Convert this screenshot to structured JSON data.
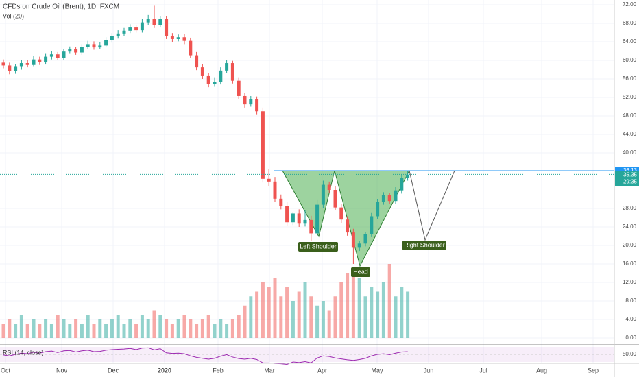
{
  "chart_data": {
    "type": "candlestick",
    "title": "CFDs on Crude Oil (Brent), 1D, FXCM",
    "volume_label": "Vol (20)",
    "rsi_label": "RSI (14, close)",
    "x_labels": [
      "Oct",
      "Nov",
      "Dec",
      "2020",
      "Feb",
      "Mar",
      "Apr",
      "May",
      "Jun",
      "Jul",
      "Aug",
      "Sep"
    ],
    "ylim": [
      -1,
      73
    ],
    "yticks": [
      {
        "value": 0,
        "label": "0.00"
      },
      {
        "value": 4,
        "label": "4.00"
      },
      {
        "value": 8,
        "label": "8.00"
      },
      {
        "value": 12,
        "label": "12.00"
      },
      {
        "value": 16,
        "label": "16.00"
      },
      {
        "value": 20,
        "label": "20.00"
      },
      {
        "value": 24,
        "label": "24.00"
      },
      {
        "value": 28,
        "label": "28.00"
      },
      {
        "value": 40,
        "label": "40.00"
      },
      {
        "value": 44,
        "label": "44.00"
      },
      {
        "value": 48,
        "label": "48.00"
      },
      {
        "value": 52,
        "label": "52.00"
      },
      {
        "value": 56,
        "label": "56.00"
      },
      {
        "value": 60,
        "label": "60.00"
      },
      {
        "value": 64,
        "label": "64.00"
      },
      {
        "value": 68,
        "label": "68.00"
      },
      {
        "value": 72,
        "label": "72.00"
      }
    ],
    "up_color": "#26a69a",
    "down_color": "#ef5350",
    "open": [
      59.5,
      58.9,
      57.7,
      58.6,
      59.4,
      59.0,
      60.2,
      59.6,
      60.8,
      61.3,
      60.5,
      61.9,
      62.4,
      61.7,
      62.9,
      63.5,
      62.8,
      63.2,
      64.3,
      65.2,
      65.8,
      66.4,
      67.1,
      66.5,
      68.2,
      68.9,
      67.6,
      68.9,
      65.2,
      64.6,
      65.0,
      64.2,
      61.1,
      58.5,
      56.6,
      54.9,
      55.4,
      57.8,
      59.4,
      55.6,
      52.3,
      50.5,
      51.6,
      49.0,
      34.4,
      33.8,
      30.1,
      28.5,
      25.0,
      26.9,
      24.7,
      25.5,
      22.6,
      28.8,
      33.1,
      32.0,
      28.2,
      25.6,
      22.8,
      19.5,
      20.4,
      22.5,
      26.3,
      29.4,
      30.9,
      29.6,
      31.9,
      34.6
    ],
    "high": [
      60.2,
      59.5,
      59.2,
      60.0,
      60.1,
      60.9,
      60.8,
      61.4,
      62.0,
      61.8,
      62.5,
      63.0,
      62.9,
      63.5,
      64.2,
      64.1,
      63.9,
      65.0,
      65.9,
      66.5,
      67.0,
      67.8,
      67.6,
      68.9,
      69.8,
      71.8,
      69.6,
      69.5,
      65.9,
      65.6,
      65.7,
      64.9,
      61.8,
      59.2,
      57.3,
      56.2,
      58.5,
      60.0,
      59.9,
      56.2,
      53.0,
      52.3,
      52.2,
      49.8,
      36.5,
      34.8,
      31.0,
      29.4,
      27.2,
      27.8,
      27.6,
      26.4,
      29.8,
      34.0,
      33.8,
      32.8,
      28.9,
      26.3,
      23.6,
      20.9,
      22.9,
      27.0,
      30.0,
      31.5,
      31.4,
      32.6,
      35.4,
      36.0
    ],
    "low": [
      58.3,
      57.0,
      57.1,
      58.0,
      58.5,
      58.6,
      59.0,
      59.1,
      60.2,
      60.0,
      60.0,
      61.4,
      61.2,
      61.2,
      62.5,
      62.3,
      62.4,
      62.8,
      63.8,
      64.7,
      65.3,
      65.9,
      66.0,
      66.0,
      67.7,
      67.0,
      67.1,
      64.6,
      64.0,
      64.1,
      63.5,
      60.5,
      57.9,
      56.0,
      54.2,
      54.3,
      54.8,
      57.2,
      55.0,
      51.6,
      49.8,
      50.0,
      48.2,
      33.6,
      32.8,
      29.4,
      27.8,
      24.3,
      24.4,
      24.0,
      24.1,
      21.0,
      22.0,
      28.1,
      31.4,
      27.6,
      24.8,
      22.1,
      16.0,
      18.8,
      19.8,
      21.8,
      25.7,
      28.8,
      28.9,
      29.0,
      31.2,
      34.0
    ],
    "close": [
      58.9,
      57.7,
      58.6,
      59.4,
      59.0,
      60.2,
      59.6,
      60.8,
      61.3,
      60.5,
      61.9,
      62.4,
      61.7,
      62.9,
      63.5,
      62.8,
      63.2,
      64.3,
      65.2,
      65.8,
      66.4,
      67.1,
      66.5,
      68.2,
      68.9,
      67.6,
      68.9,
      65.2,
      64.6,
      65.0,
      64.2,
      61.1,
      58.5,
      56.6,
      54.9,
      55.4,
      57.8,
      59.4,
      55.6,
      52.3,
      50.5,
      51.6,
      49.0,
      34.4,
      33.8,
      30.1,
      28.5,
      25.0,
      26.9,
      24.7,
      25.5,
      22.6,
      28.8,
      33.1,
      32.0,
      28.2,
      25.6,
      22.8,
      19.5,
      20.4,
      22.5,
      26.3,
      29.4,
      30.9,
      29.6,
      31.9,
      34.6,
      35.3
    ],
    "volume": [
      3,
      4,
      3,
      5,
      3,
      4,
      3,
      4,
      3,
      5,
      4,
      3,
      4,
      3,
      5,
      3,
      4,
      3,
      4,
      5,
      3,
      4,
      3,
      5,
      4,
      6,
      5,
      4,
      3,
      4,
      5,
      4,
      3,
      4,
      5,
      3,
      4,
      3,
      4,
      5,
      7,
      9,
      10,
      12,
      11,
      13,
      9,
      11,
      8,
      10,
      12,
      9,
      7,
      8,
      6,
      9,
      12,
      14,
      15,
      13,
      9,
      11,
      10,
      12,
      16,
      9,
      11,
      10
    ],
    "rsi": [
      48,
      45,
      50,
      54,
      52,
      57,
      54,
      59,
      61,
      56,
      62,
      63,
      58,
      62,
      64,
      59,
      60,
      64,
      66,
      67,
      68,
      70,
      66,
      71,
      72,
      65,
      69,
      55,
      53,
      54,
      52,
      45,
      40,
      37,
      34,
      37,
      44,
      49,
      41,
      36,
      34,
      37,
      33,
      22,
      22,
      20,
      19,
      17,
      25,
      23,
      26,
      22,
      38,
      45,
      43,
      38,
      35,
      32,
      30,
      33,
      37,
      45,
      50,
      52,
      49,
      54,
      58,
      59
    ],
    "rsi_color": "#9c27b0",
    "rsi_ylim": [
      25,
      75
    ],
    "rsi_ticks": [
      {
        "value": 50,
        "label": "50.00"
      }
    ],
    "neckline": 36.13,
    "last_price": 35.35,
    "countdown": "29:35",
    "annotations": [
      "Left Shoulder",
      "Head",
      "Right Shoulder"
    ]
  }
}
